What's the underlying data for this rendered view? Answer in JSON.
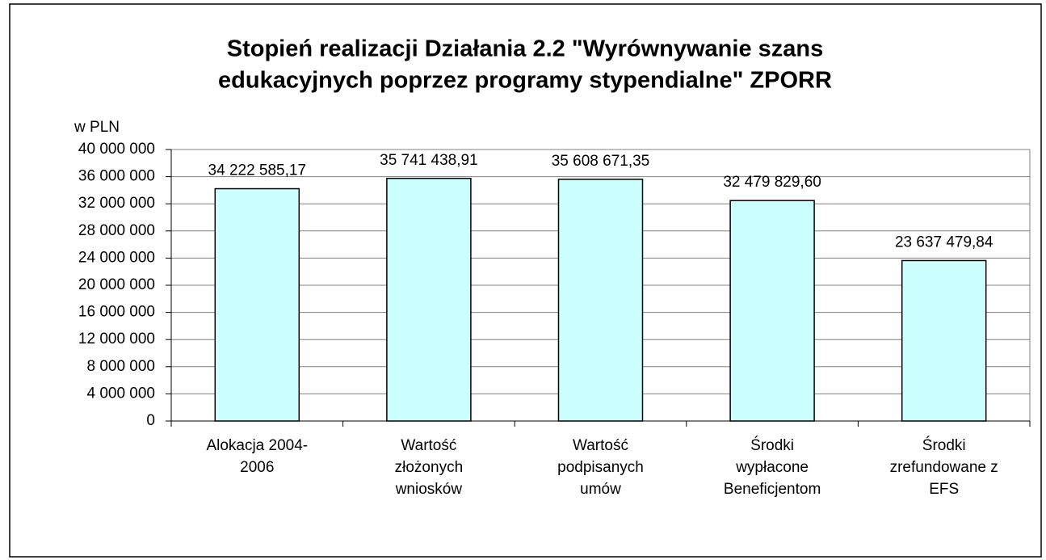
{
  "chart_data": {
    "type": "bar",
    "title": [
      "Stopień realizacji Działania 2.2 \"Wyrównywanie szans",
      "edukacyjnych poprzez programy stypendialne\" ZPORR"
    ],
    "y_axis_label": "w PLN",
    "categories": [
      [
        "Alokacja 2004-",
        "2006"
      ],
      [
        "Wartość",
        "złożonych",
        "wniosków"
      ],
      [
        "Wartość",
        "podpisanych",
        "umów"
      ],
      [
        "Środki",
        "wypłacone",
        "Beneficjentom"
      ],
      [
        "Środki",
        "zrefundowane z",
        "EFS"
      ]
    ],
    "values": [
      34222585.17,
      35741438.91,
      35608671.35,
      32479829.6,
      23637479.84
    ],
    "value_labels": [
      "34 222 585,17",
      "35 741 438,91",
      "35 608 671,35",
      "32 479 829,60",
      "23 637 479,84"
    ],
    "color": "#ccffff",
    "ylim": [
      0,
      40000000
    ],
    "yticks": [
      0,
      {
        "value": 4000000,
        "label": "4 000 000"
      },
      {
        "value": 8000000,
        "label": "8 000 000"
      },
      {
        "value": 12000000,
        "label": "12 000 000"
      },
      {
        "value": 16000000,
        "label": "16 000 000"
      },
      {
        "value": 20000000,
        "label": "20 000 000"
      },
      {
        "value": 24000000,
        "label": "24 000 000"
      },
      {
        "value": 28000000,
        "label": "28 000 000"
      },
      {
        "value": 32000000,
        "label": "32 000 000"
      },
      {
        "value": 36000000,
        "label": "36 000 000"
      },
      {
        "value": 40000000,
        "label": "40 000 000"
      }
    ],
    "grid": true
  }
}
